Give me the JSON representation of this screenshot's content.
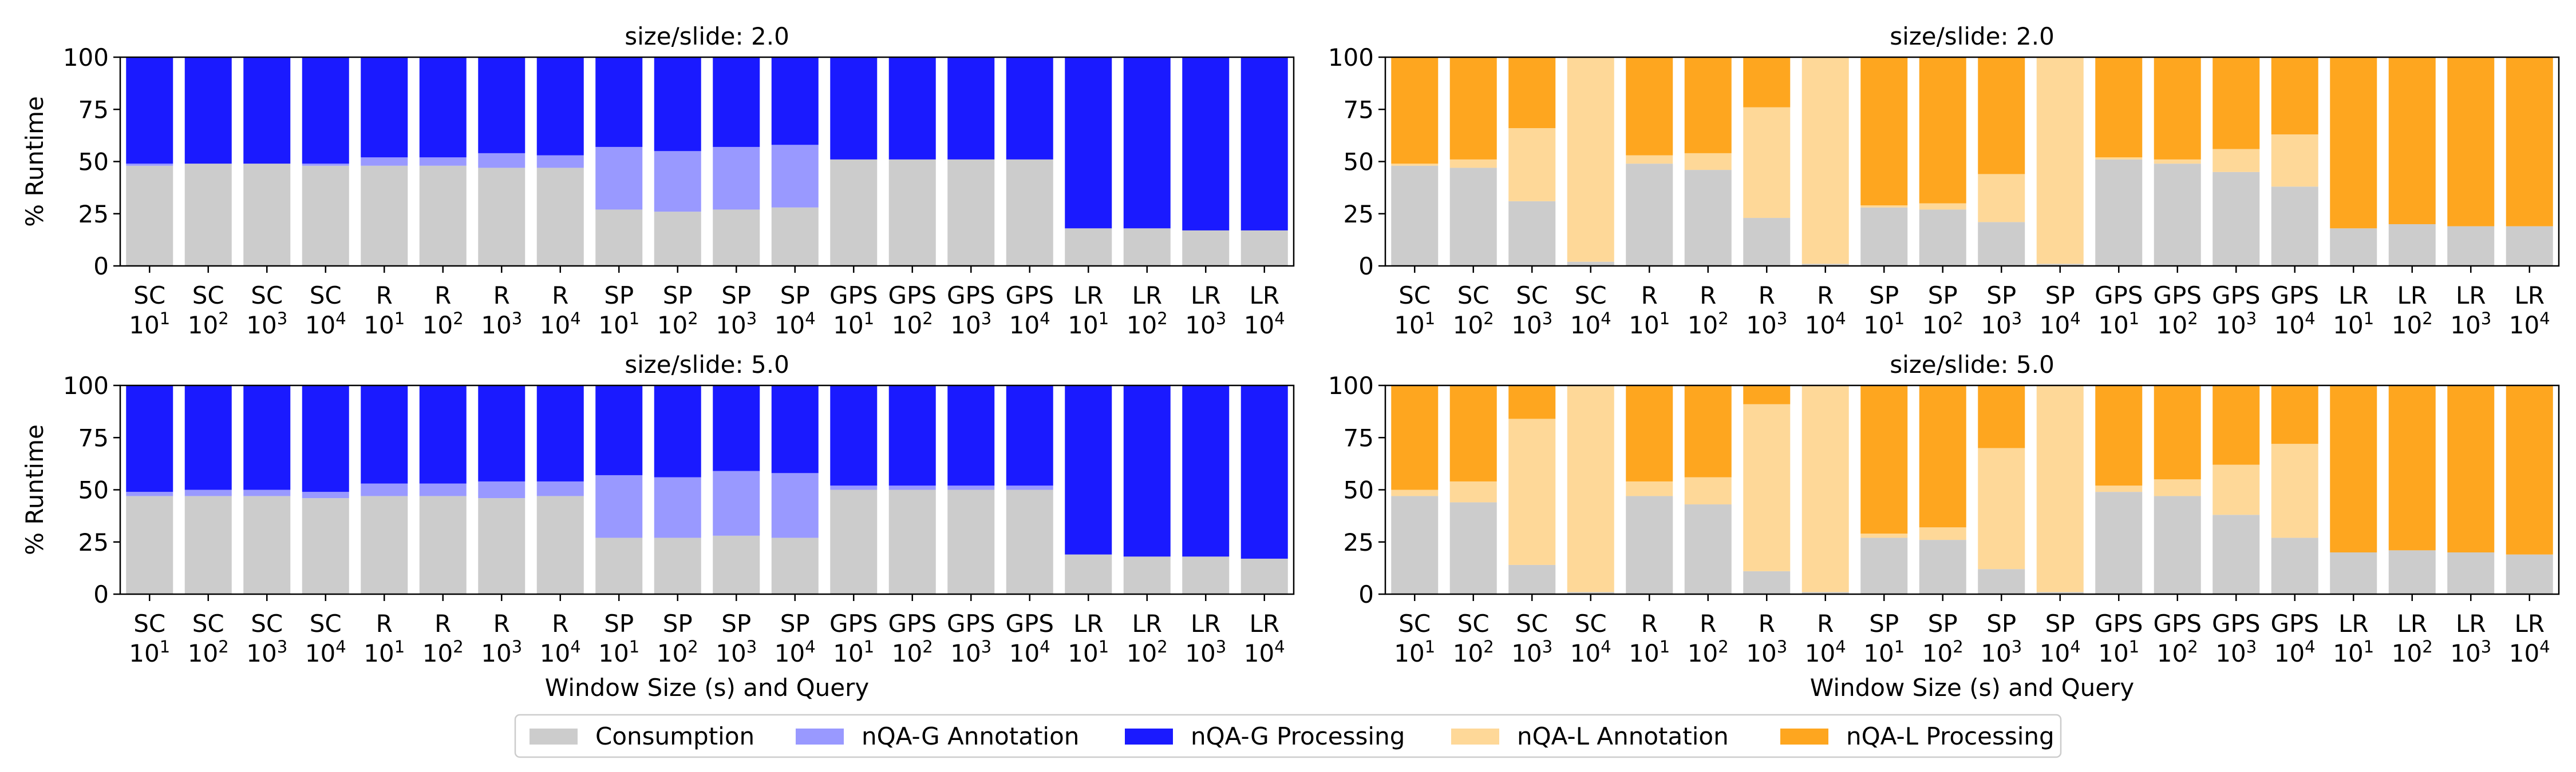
{
  "figure": {
    "ylabel": "% Runtime",
    "xlabel": "Window Size (s) and Query"
  },
  "legend": [
    {
      "label": "Consumption",
      "color": "#cccccc"
    },
    {
      "label": "nQA-G Annotation",
      "color": "#9999ff"
    },
    {
      "label": "nQA-G Processing",
      "color": "#1a1aff"
    },
    {
      "label": "nQA-L Annotation",
      "color": "#fed898"
    },
    {
      "label": "nQA-L Processing",
      "color": "#fea61f"
    }
  ],
  "chart_data": [
    {
      "type": "bar",
      "stacked": true,
      "title": "size/slide: 2.0",
      "ylabel": "% Runtime",
      "xlabel": "",
      "ylim": [
        0,
        100
      ],
      "yticks": [
        0,
        25,
        50,
        75,
        100
      ],
      "categories": [
        {
          "query": "SC",
          "window": "10",
          "exp": "1"
        },
        {
          "query": "SC",
          "window": "10",
          "exp": "2"
        },
        {
          "query": "SC",
          "window": "10",
          "exp": "3"
        },
        {
          "query": "SC",
          "window": "10",
          "exp": "4"
        },
        {
          "query": "R",
          "window": "10",
          "exp": "1"
        },
        {
          "query": "R",
          "window": "10",
          "exp": "2"
        },
        {
          "query": "R",
          "window": "10",
          "exp": "3"
        },
        {
          "query": "R",
          "window": "10",
          "exp": "4"
        },
        {
          "query": "SP",
          "window": "10",
          "exp": "1"
        },
        {
          "query": "SP",
          "window": "10",
          "exp": "2"
        },
        {
          "query": "SP",
          "window": "10",
          "exp": "3"
        },
        {
          "query": "SP",
          "window": "10",
          "exp": "4"
        },
        {
          "query": "GPS",
          "window": "10",
          "exp": "1"
        },
        {
          "query": "GPS",
          "window": "10",
          "exp": "2"
        },
        {
          "query": "GPS",
          "window": "10",
          "exp": "3"
        },
        {
          "query": "GPS",
          "window": "10",
          "exp": "4"
        },
        {
          "query": "LR",
          "window": "10",
          "exp": "1"
        },
        {
          "query": "LR",
          "window": "10",
          "exp": "2"
        },
        {
          "query": "LR",
          "window": "10",
          "exp": "3"
        },
        {
          "query": "LR",
          "window": "10",
          "exp": "4"
        }
      ],
      "series": [
        {
          "name": "Consumption",
          "color": "#cccccc",
          "values": [
            48,
            49,
            49,
            48,
            48,
            48,
            47,
            47,
            27,
            26,
            27,
            28,
            51,
            51,
            51,
            51,
            18,
            18,
            17,
            17
          ]
        },
        {
          "name": "nQA-G Annotation",
          "color": "#9999ff",
          "values": [
            1,
            0,
            0,
            1,
            4,
            4,
            7,
            6,
            30,
            29,
            30,
            30,
            0,
            0,
            0,
            0,
            0,
            0,
            0,
            0
          ]
        },
        {
          "name": "nQA-G Processing",
          "color": "#1a1aff",
          "values": [
            51,
            51,
            51,
            51,
            48,
            48,
            46,
            47,
            43,
            45,
            43,
            42,
            49,
            49,
            49,
            49,
            82,
            82,
            83,
            83
          ]
        }
      ]
    },
    {
      "type": "bar",
      "stacked": true,
      "title": "size/slide: 2.0",
      "ylabel": "",
      "xlabel": "",
      "ylim": [
        0,
        100
      ],
      "yticks": [
        0,
        25,
        50,
        75,
        100
      ],
      "categories": [
        {
          "query": "SC",
          "window": "10",
          "exp": "1"
        },
        {
          "query": "SC",
          "window": "10",
          "exp": "2"
        },
        {
          "query": "SC",
          "window": "10",
          "exp": "3"
        },
        {
          "query": "SC",
          "window": "10",
          "exp": "4"
        },
        {
          "query": "R",
          "window": "10",
          "exp": "1"
        },
        {
          "query": "R",
          "window": "10",
          "exp": "2"
        },
        {
          "query": "R",
          "window": "10",
          "exp": "3"
        },
        {
          "query": "R",
          "window": "10",
          "exp": "4"
        },
        {
          "query": "SP",
          "window": "10",
          "exp": "1"
        },
        {
          "query": "SP",
          "window": "10",
          "exp": "2"
        },
        {
          "query": "SP",
          "window": "10",
          "exp": "3"
        },
        {
          "query": "SP",
          "window": "10",
          "exp": "4"
        },
        {
          "query": "GPS",
          "window": "10",
          "exp": "1"
        },
        {
          "query": "GPS",
          "window": "10",
          "exp": "2"
        },
        {
          "query": "GPS",
          "window": "10",
          "exp": "3"
        },
        {
          "query": "GPS",
          "window": "10",
          "exp": "4"
        },
        {
          "query": "LR",
          "window": "10",
          "exp": "1"
        },
        {
          "query": "LR",
          "window": "10",
          "exp": "2"
        },
        {
          "query": "LR",
          "window": "10",
          "exp": "3"
        },
        {
          "query": "LR",
          "window": "10",
          "exp": "4"
        }
      ],
      "series": [
        {
          "name": "Consumption",
          "color": "#cccccc",
          "values": [
            48,
            47,
            31,
            2,
            49,
            46,
            23,
            1,
            28,
            27,
            21,
            1,
            51,
            49,
            45,
            38,
            18,
            20,
            19,
            19
          ]
        },
        {
          "name": "nQA-L Annotation",
          "color": "#fed898",
          "values": [
            1,
            4,
            35,
            98,
            4,
            8,
            53,
            99,
            1,
            3,
            23,
            99,
            1,
            2,
            11,
            25,
            0,
            0,
            0,
            0
          ]
        },
        {
          "name": "nQA-L Processing",
          "color": "#fea61f",
          "values": [
            51,
            49,
            34,
            0,
            47,
            46,
            24,
            0,
            71,
            70,
            56,
            0,
            48,
            49,
            44,
            37,
            82,
            80,
            81,
            81
          ]
        }
      ]
    },
    {
      "type": "bar",
      "stacked": true,
      "title": "size/slide: 5.0",
      "ylabel": "% Runtime",
      "xlabel": "Window Size (s) and Query",
      "ylim": [
        0,
        100
      ],
      "yticks": [
        0,
        25,
        50,
        75,
        100
      ],
      "categories": [
        {
          "query": "SC",
          "window": "10",
          "exp": "1"
        },
        {
          "query": "SC",
          "window": "10",
          "exp": "2"
        },
        {
          "query": "SC",
          "window": "10",
          "exp": "3"
        },
        {
          "query": "SC",
          "window": "10",
          "exp": "4"
        },
        {
          "query": "R",
          "window": "10",
          "exp": "1"
        },
        {
          "query": "R",
          "window": "10",
          "exp": "2"
        },
        {
          "query": "R",
          "window": "10",
          "exp": "3"
        },
        {
          "query": "R",
          "window": "10",
          "exp": "4"
        },
        {
          "query": "SP",
          "window": "10",
          "exp": "1"
        },
        {
          "query": "SP",
          "window": "10",
          "exp": "2"
        },
        {
          "query": "SP",
          "window": "10",
          "exp": "3"
        },
        {
          "query": "SP",
          "window": "10",
          "exp": "4"
        },
        {
          "query": "GPS",
          "window": "10",
          "exp": "1"
        },
        {
          "query": "GPS",
          "window": "10",
          "exp": "2"
        },
        {
          "query": "GPS",
          "window": "10",
          "exp": "3"
        },
        {
          "query": "GPS",
          "window": "10",
          "exp": "4"
        },
        {
          "query": "LR",
          "window": "10",
          "exp": "1"
        },
        {
          "query": "LR",
          "window": "10",
          "exp": "2"
        },
        {
          "query": "LR",
          "window": "10",
          "exp": "3"
        },
        {
          "query": "LR",
          "window": "10",
          "exp": "4"
        }
      ],
      "series": [
        {
          "name": "Consumption",
          "color": "#cccccc",
          "values": [
            47,
            47,
            47,
            46,
            47,
            47,
            46,
            47,
            27,
            27,
            28,
            27,
            50,
            50,
            50,
            50,
            19,
            18,
            18,
            17
          ]
        },
        {
          "name": "nQA-G Annotation",
          "color": "#9999ff",
          "values": [
            2,
            3,
            3,
            3,
            6,
            6,
            8,
            7,
            30,
            29,
            31,
            31,
            2,
            2,
            2,
            2,
            0,
            0,
            0,
            0
          ]
        },
        {
          "name": "nQA-G Processing",
          "color": "#1a1aff",
          "values": [
            51,
            50,
            50,
            51,
            47,
            47,
            46,
            46,
            43,
            44,
            41,
            42,
            48,
            48,
            48,
            48,
            81,
            82,
            82,
            83
          ]
        }
      ]
    },
    {
      "type": "bar",
      "stacked": true,
      "title": "size/slide: 5.0",
      "ylabel": "",
      "xlabel": "Window Size (s) and Query",
      "ylim": [
        0,
        100
      ],
      "yticks": [
        0,
        25,
        50,
        75,
        100
      ],
      "categories": [
        {
          "query": "SC",
          "window": "10",
          "exp": "1"
        },
        {
          "query": "SC",
          "window": "10",
          "exp": "2"
        },
        {
          "query": "SC",
          "window": "10",
          "exp": "3"
        },
        {
          "query": "SC",
          "window": "10",
          "exp": "4"
        },
        {
          "query": "R",
          "window": "10",
          "exp": "1"
        },
        {
          "query": "R",
          "window": "10",
          "exp": "2"
        },
        {
          "query": "R",
          "window": "10",
          "exp": "3"
        },
        {
          "query": "R",
          "window": "10",
          "exp": "4"
        },
        {
          "query": "SP",
          "window": "10",
          "exp": "1"
        },
        {
          "query": "SP",
          "window": "10",
          "exp": "2"
        },
        {
          "query": "SP",
          "window": "10",
          "exp": "3"
        },
        {
          "query": "SP",
          "window": "10",
          "exp": "4"
        },
        {
          "query": "GPS",
          "window": "10",
          "exp": "1"
        },
        {
          "query": "GPS",
          "window": "10",
          "exp": "2"
        },
        {
          "query": "GPS",
          "window": "10",
          "exp": "3"
        },
        {
          "query": "GPS",
          "window": "10",
          "exp": "4"
        },
        {
          "query": "LR",
          "window": "10",
          "exp": "1"
        },
        {
          "query": "LR",
          "window": "10",
          "exp": "2"
        },
        {
          "query": "LR",
          "window": "10",
          "exp": "3"
        },
        {
          "query": "LR",
          "window": "10",
          "exp": "4"
        }
      ],
      "series": [
        {
          "name": "Consumption",
          "color": "#cccccc",
          "values": [
            47,
            44,
            14,
            1,
            47,
            43,
            11,
            1,
            27,
            26,
            12,
            1,
            49,
            47,
            38,
            27,
            20,
            21,
            20,
            19
          ]
        },
        {
          "name": "nQA-L Annotation",
          "color": "#fed898",
          "values": [
            3,
            10,
            70,
            99,
            7,
            13,
            80,
            99,
            2,
            6,
            58,
            99,
            3,
            8,
            24,
            45,
            0,
            0,
            0,
            0
          ]
        },
        {
          "name": "nQA-L Processing",
          "color": "#fea61f",
          "values": [
            50,
            46,
            16,
            0,
            46,
            44,
            9,
            0,
            71,
            68,
            30,
            0,
            48,
            45,
            38,
            28,
            80,
            79,
            80,
            81
          ]
        }
      ]
    }
  ]
}
